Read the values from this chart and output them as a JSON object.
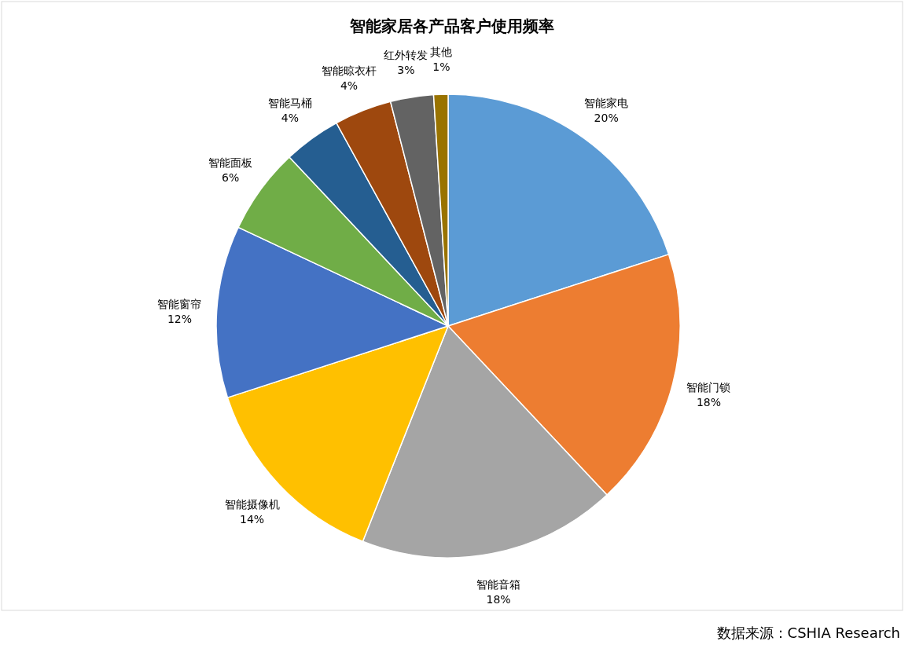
{
  "chart_data": {
    "type": "pie",
    "title": "智能家居各产品客户使用频率",
    "categories": [
      "智能家电",
      "智能门锁",
      "智能音箱",
      "智能摄像机",
      "智能窗帘",
      "智能面板",
      "智能马桶",
      "智能晾衣杆",
      "红外转发",
      "其他"
    ],
    "values": [
      20,
      18,
      18,
      14,
      12,
      6,
      4,
      4,
      3,
      1
    ],
    "colors": [
      "#5b9bd5",
      "#ed7d31",
      "#a5a5a5",
      "#ffc000",
      "#4472c4",
      "#70ad47",
      "#255e91",
      "#9e480e",
      "#636363",
      "#997300"
    ],
    "value_labels": [
      "20%",
      "18%",
      "18%",
      "14%",
      "12%",
      "6%",
      "4%",
      "4%",
      "3%",
      "1%"
    ],
    "annotations": [
      "数据来源：CSHIA Research"
    ]
  }
}
